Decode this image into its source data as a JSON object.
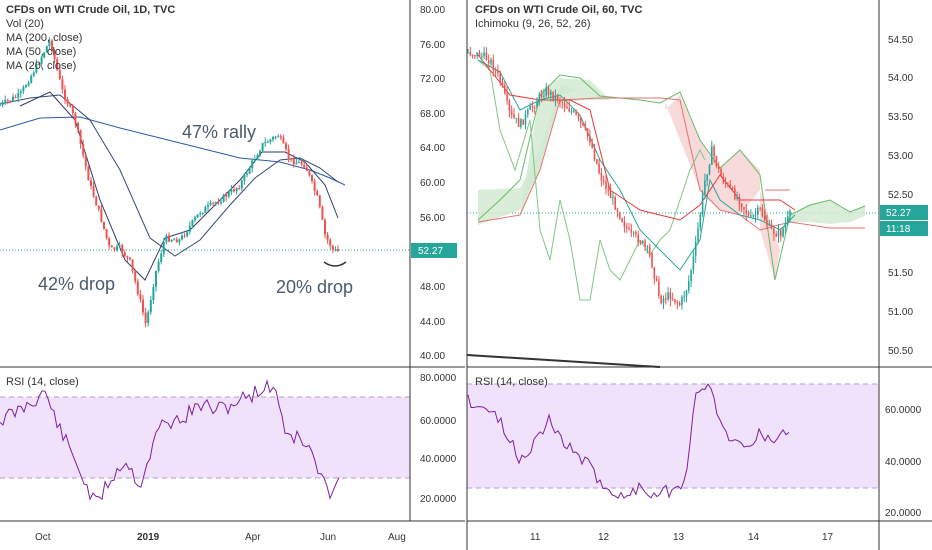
{
  "chart_data": [
    {
      "type": "candlestick",
      "title": "CFDs on WTI Crude Oil, 1D, TVC",
      "indicators": [
        "Vol (20)",
        "MA (200, close)",
        "MA (50, close)",
        "MA (20, close)"
      ],
      "x_ticks": [
        "Oct",
        "2019",
        "Apr",
        "Jun",
        "Aug"
      ],
      "y_ticks": [
        "80.00",
        "76.00",
        "72.00",
        "68.00",
        "64.00",
        "60.00",
        "56.00",
        "52.00",
        "48.00",
        "44.00",
        "40.00"
      ],
      "ylim": [
        40,
        80
      ],
      "last_price": "52.27",
      "annotations": [
        "47% rally",
        "42% drop",
        "20% drop"
      ],
      "rsi": {
        "label": "RSI (14, close)",
        "ticks": [
          "80.0000",
          "60.0000",
          "40.0000",
          "20.0000"
        ],
        "band": [
          30,
          70
        ]
      }
    },
    {
      "type": "candlestick",
      "title": "CFDs on WTI Crude Oil, 60, TVC",
      "indicators": [
        "Ichimoku (9, 26, 52, 26)"
      ],
      "x_ticks": [
        "11",
        "12",
        "13",
        "14",
        "17"
      ],
      "y_ticks": [
        "54.50",
        "54.00",
        "53.50",
        "53.00",
        "52.50",
        "52.00",
        "51.50",
        "51.00",
        "50.50"
      ],
      "ylim": [
        50.4,
        54.7
      ],
      "last_price": "52.27",
      "countdown": "11:18",
      "rsi": {
        "label": "RSI (14, close)",
        "ticks": [
          "60.0000",
          "40.0000",
          "20.0000"
        ],
        "band": [
          30,
          70
        ]
      }
    }
  ],
  "colors": {
    "up": "#26a69a",
    "down": "#ef5350",
    "rsi": "#7b1fa2",
    "band": "#ece0f7",
    "price_label": "#26a69a"
  }
}
